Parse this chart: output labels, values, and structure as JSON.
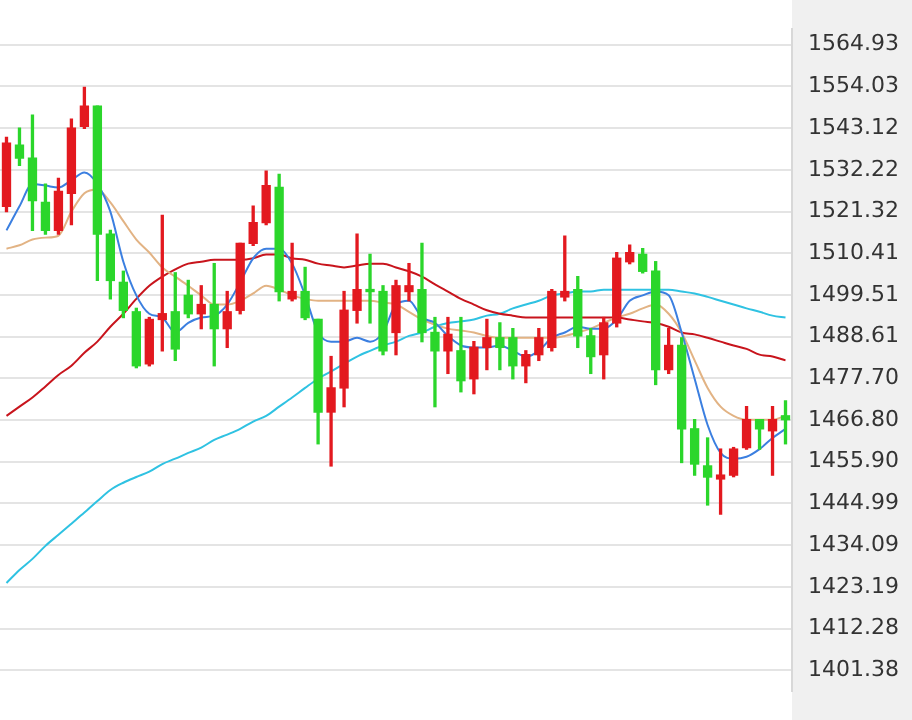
{
  "chart_data": {
    "type": "candlestick",
    "categories": [
      null,
      null,
      null,
      null,
      null,
      null,
      null,
      null,
      null,
      null,
      null,
      null,
      null,
      null,
      null,
      null,
      null,
      null,
      null,
      null,
      null,
      null,
      null,
      null,
      null,
      null,
      null,
      null,
      null,
      null,
      null,
      null,
      null,
      null,
      null,
      null,
      null,
      null,
      null,
      null,
      null,
      null,
      null,
      null,
      null,
      null,
      null,
      null,
      null,
      null,
      null,
      null,
      null,
      null,
      null,
      null,
      null,
      null,
      null,
      null,
      null
    ],
    "ohlc": [
      [
        1522.7,
        1540.7,
        1521.3,
        1539.2
      ],
      [
        1538.7,
        1543.1,
        1533.4,
        1535.3
      ],
      [
        1535.3,
        1546.5,
        1516.4,
        1524.2
      ],
      [
        1523.7,
        1528.5,
        1515.4,
        1516.4
      ],
      [
        1516.4,
        1530.0,
        1515.4,
        1526.6
      ],
      [
        1526.1,
        1545.5,
        1517.9,
        1543.1
      ],
      [
        1543.6,
        1553.8,
        1543.1,
        1548.9
      ],
      [
        1548.9,
        1548.9,
        1503.3,
        1515.4
      ],
      [
        1515.4,
        1516.4,
        1498.5,
        1503.3
      ],
      [
        1502.8,
        1505.7,
        1493.6,
        1495.5
      ],
      [
        1495.1,
        1496.0,
        1480.5,
        1481.0
      ],
      [
        1481.5,
        1493.6,
        1481.0,
        1493.1
      ],
      [
        1493.1,
        1520.3,
        1484.9,
        1494.6
      ],
      [
        1495.1,
        1505.3,
        1482.4,
        1485.4
      ],
      [
        1499.4,
        1503.3,
        1493.6,
        1494.6
      ],
      [
        1494.6,
        1501.9,
        1490.7,
        1497.0
      ],
      [
        1497.0,
        1507.7,
        1481.0,
        1490.7
      ],
      [
        1490.7,
        1500.4,
        1485.8,
        1495.1
      ],
      [
        1495.5,
        1513.0,
        1494.6,
        1513.0
      ],
      [
        1513.0,
        1522.7,
        1512.5,
        1518.4
      ],
      [
        1518.4,
        1531.9,
        1517.9,
        1528.1
      ],
      [
        1527.6,
        1531.0,
        1498.0,
        1500.4
      ],
      [
        1498.5,
        1513.0,
        1498.0,
        1500.4
      ],
      [
        1500.4,
        1506.7,
        1493.1,
        1493.6
      ],
      [
        1493.1,
        1493.1,
        1460.6,
        1468.9
      ],
      [
        1468.9,
        1483.4,
        1454.8,
        1475.2
      ],
      [
        1475.2,
        1500.4,
        1470.3,
        1495.5
      ],
      [
        1495.5,
        1515.4,
        1492.2,
        1500.9
      ],
      [
        1500.9,
        1510.1,
        1492.2,
        1500.4
      ],
      [
        1500.4,
        1501.9,
        1483.9,
        1484.9
      ],
      [
        1489.7,
        1503.3,
        1483.9,
        1501.9
      ],
      [
        1500.4,
        1507.7,
        1498.0,
        1501.9
      ],
      [
        1500.9,
        1513.0,
        1487.3,
        1489.7
      ],
      [
        1489.7,
        1493.6,
        1470.3,
        1484.9
      ],
      [
        1484.9,
        1493.6,
        1479.0,
        1489.2
      ],
      [
        1484.9,
        1493.6,
        1474.2,
        1477.1
      ],
      [
        1477.6,
        1487.3,
        1473.7,
        1485.8
      ],
      [
        1485.8,
        1493.1,
        1480.0,
        1488.3
      ],
      [
        1488.3,
        1492.2,
        1480.0,
        1485.8
      ],
      [
        1488.3,
        1490.7,
        1477.6,
        1481.0
      ],
      [
        1481.0,
        1484.9,
        1476.6,
        1483.9
      ],
      [
        1483.9,
        1490.7,
        1482.4,
        1488.3
      ],
      [
        1485.8,
        1500.9,
        1484.9,
        1500.4
      ],
      [
        1499.0,
        1514.9,
        1498.0,
        1500.4
      ],
      [
        1500.9,
        1504.3,
        1485.8,
        1488.8
      ],
      [
        1488.8,
        1490.7,
        1479.0,
        1483.4
      ],
      [
        1483.9,
        1493.6,
        1477.6,
        1492.2
      ],
      [
        1492.2,
        1510.6,
        1491.2,
        1509.1
      ],
      [
        1508.2,
        1512.5,
        1507.7,
        1510.6
      ],
      [
        1510.1,
        1511.6,
        1505.3,
        1505.7
      ],
      [
        1505.7,
        1508.2,
        1476.1,
        1480.0
      ],
      [
        1480.0,
        1490.7,
        1479.0,
        1486.3
      ],
      [
        1486.3,
        1488.3,
        1455.7,
        1464.5
      ],
      [
        1464.5,
        1466.9,
        1452.4,
        1455.3
      ],
      [
        1454.8,
        1462.1,
        1444.6,
        1451.9
      ],
      [
        1451.4,
        1459.2,
        1442.2,
        1452.4
      ],
      [
        1452.4,
        1459.6,
        1452.0,
        1459.2
      ],
      [
        1459.6,
        1470.3,
        1459.2,
        1466.9
      ],
      [
        1466.9,
        1466.9,
        1459.2,
        1464.5
      ],
      [
        1464.0,
        1470.3,
        1452.4,
        1466.9
      ],
      [
        1467.9,
        1471.8,
        1460.6,
        1466.9
      ]
    ],
    "colors": [
      "#e3191f",
      "#2bd62b",
      "#2bd62b",
      "#2bd62b",
      "#e3191f",
      "#e3191f",
      "#e3191f",
      "#2bd62b",
      "#2bd62b",
      "#2bd62b",
      "#2bd62b",
      "#e3191f",
      "#e3191f",
      "#2bd62b",
      "#2bd62b",
      "#e3191f",
      "#2bd62b",
      "#e3191f",
      "#e3191f",
      "#e3191f",
      "#e3191f",
      "#2bd62b",
      "#e3191f",
      "#2bd62b",
      "#2bd62b",
      "#e3191f",
      "#e3191f",
      "#e3191f",
      "#2bd62b",
      "#2bd62b",
      "#e3191f",
      "#e3191f",
      "#2bd62b",
      "#2bd62b",
      "#e3191f",
      "#2bd62b",
      "#e3191f",
      "#e3191f",
      "#2bd62b",
      "#2bd62b",
      "#e3191f",
      "#e3191f",
      "#e3191f",
      "#e3191f",
      "#2bd62b",
      "#2bd62b",
      "#e3191f",
      "#e3191f",
      "#e3191f",
      "#2bd62b",
      "#2bd62b",
      "#e3191f",
      "#2bd62b",
      "#2bd62b",
      "#2bd62b",
      "#e3191f",
      "#e3191f",
      "#e3191f",
      "#2bd62b",
      "#e3191f",
      "#2bd62b"
    ],
    "series": [
      {
        "type": "line",
        "color": "#3b7fe0",
        "values": [
          1516.4,
          1522.7,
          1528.5,
          1528.1,
          1527.6,
          1529.5,
          1531.5,
          1528.5,
          1521.3,
          1508.2,
          1499.4,
          1494.6,
          1493.6,
          1489.7,
          1492.2,
          1493.6,
          1494.1,
          1497.0,
          1502.8,
          1509.1,
          1511.6,
          1511.6,
          1507.7,
          1499.4,
          1489.7,
          1487.3,
          1487.3,
          1488.3,
          1487.3,
          1489.7,
          1497.0,
          1498.0,
          1493.6,
          1492.2,
          1488.8,
          1486.3,
          1485.8,
          1485.8,
          1486.3,
          1484.9,
          1483.4,
          1484.9,
          1488.3,
          1489.7,
          1491.2,
          1490.7,
          1490.7,
          1493.1,
          1498.0,
          1499.4,
          1500.4,
          1499.4,
          1489.7,
          1477.6,
          1465.5,
          1458.2,
          1456.7,
          1457.2,
          1459.2,
          1462.1,
          1464.5
        ]
      },
      {
        "type": "line",
        "color": "#e2b384",
        "values": [
          1511.6,
          1512.5,
          1514.0,
          1514.5,
          1515.0,
          1521.3,
          1526.1,
          1527.1,
          1523.7,
          1518.8,
          1514.0,
          1510.6,
          1506.7,
          1504.3,
          1501.9,
          1499.4,
          1497.0,
          1497.0,
          1498.0,
          1499.9,
          1501.9,
          1500.9,
          1499.4,
          1498.5,
          1498.0,
          1498.0,
          1498.0,
          1498.0,
          1498.0,
          1497.5,
          1497.0,
          1495.1,
          1493.1,
          1491.7,
          1490.7,
          1490.2,
          1489.7,
          1488.8,
          1488.3,
          1488.3,
          1488.3,
          1488.3,
          1488.3,
          1488.8,
          1489.7,
          1490.7,
          1492.2,
          1493.6,
          1494.6,
          1496.0,
          1497.0,
          1494.6,
          1489.7,
          1482.4,
          1475.2,
          1470.3,
          1467.9,
          1466.9,
          1466.9,
          1466.9,
          1467.9
        ]
      },
      {
        "type": "line",
        "color": "#c8141c",
        "values": [
          1467.9,
          1470.3,
          1472.7,
          1475.6,
          1478.6,
          1481.0,
          1484.4,
          1487.3,
          1491.2,
          1494.6,
          1498.5,
          1501.9,
          1504.3,
          1506.2,
          1507.7,
          1508.2,
          1508.7,
          1508.7,
          1508.7,
          1509.1,
          1510.1,
          1510.1,
          1509.1,
          1508.7,
          1507.7,
          1507.2,
          1506.7,
          1507.2,
          1507.7,
          1507.7,
          1506.7,
          1505.7,
          1504.3,
          1502.3,
          1500.4,
          1498.5,
          1497.0,
          1495.5,
          1494.6,
          1494.1,
          1493.6,
          1493.6,
          1493.6,
          1493.6,
          1493.6,
          1493.6,
          1493.6,
          1493.6,
          1493.1,
          1492.6,
          1492.2,
          1491.2,
          1489.7,
          1489.2,
          1488.3,
          1487.3,
          1486.3,
          1485.4,
          1483.9,
          1483.4,
          1482.4
        ]
      },
      {
        "type": "line",
        "color": "#2fc2e2",
        "values": [
          1424.2,
          1427.6,
          1430.5,
          1433.9,
          1436.8,
          1439.7,
          1442.6,
          1445.6,
          1448.5,
          1450.4,
          1451.9,
          1453.3,
          1455.3,
          1456.7,
          1458.2,
          1459.6,
          1461.6,
          1463.0,
          1464.5,
          1466.4,
          1467.9,
          1470.3,
          1472.7,
          1475.2,
          1477.6,
          1479.5,
          1481.5,
          1483.4,
          1484.9,
          1486.3,
          1487.3,
          1488.8,
          1489.7,
          1491.2,
          1492.2,
          1492.6,
          1493.1,
          1494.1,
          1494.6,
          1496.0,
          1497.0,
          1498.0,
          1499.4,
          1499.9,
          1500.4,
          1500.4,
          1500.9,
          1500.9,
          1500.9,
          1500.9,
          1500.9,
          1500.9,
          1500.4,
          1499.9,
          1499.0,
          1498.0,
          1497.0,
          1496.0,
          1495.1,
          1494.1,
          1493.6
        ]
      }
    ],
    "ylim": [
      1396,
      1569
    ],
    "yticks": [
      1564.93,
      1554.03,
      1543.12,
      1532.22,
      1521.32,
      1510.41,
      1499.51,
      1488.61,
      {
        "value": 1477.7,
        "label": "1477.70"
      },
      {
        "value": 1466.8,
        "label": "1466.80"
      },
      {
        "value": 1455.9,
        "label": "1455.90"
      },
      1444.99,
      1434.09,
      1423.19,
      1412.28,
      1401.38
    ],
    "grid": "y",
    "tick_labels": "y",
    "marker": "none",
    "line_style": "solid"
  }
}
